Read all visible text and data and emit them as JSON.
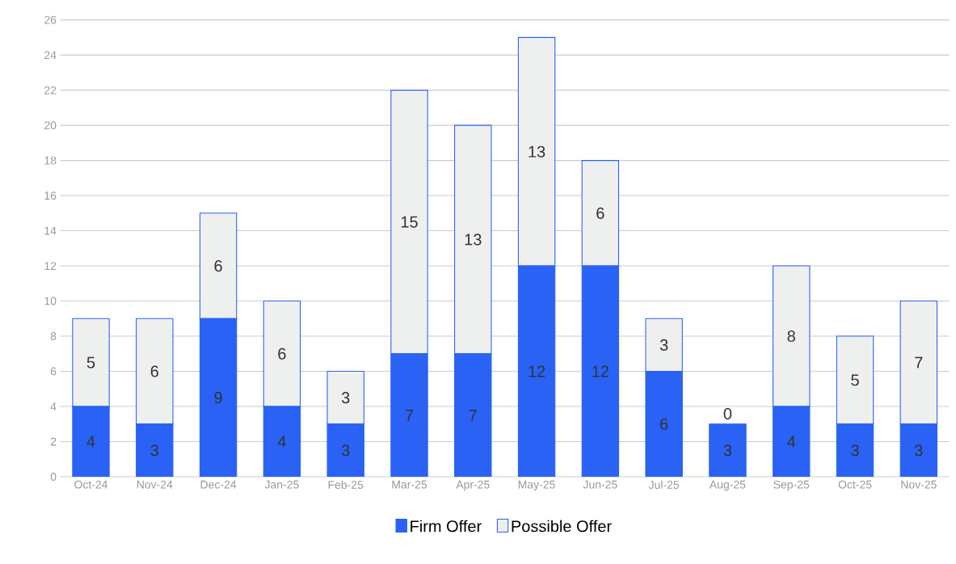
{
  "chart_data": {
    "type": "bar",
    "stacked": true,
    "categories": [
      "Oct-24",
      "Nov-24",
      "Dec-24",
      "Jan-25",
      "Feb-25",
      "Mar-25",
      "Apr-25",
      "May-25",
      "Jun-25",
      "Jul-25",
      "Aug-25",
      "Sep-25",
      "Oct-25",
      "Nov-25"
    ],
    "series": [
      {
        "name": "Firm Offer",
        "color": "#2962f5",
        "values": [
          4,
          3,
          9,
          4,
          3,
          7,
          7,
          12,
          12,
          6,
          3,
          4,
          3,
          3
        ]
      },
      {
        "name": "Possible Offer",
        "color": "#eef0f0",
        "values": [
          5,
          6,
          6,
          6,
          3,
          15,
          13,
          13,
          6,
          3,
          0,
          8,
          5,
          7
        ]
      }
    ],
    "ylim": [
      0,
      26
    ],
    "yticks": [
      0,
      2,
      4,
      6,
      8,
      10,
      12,
      14,
      16,
      18,
      20,
      22,
      24,
      26
    ],
    "grid": "y",
    "legend": "bottom",
    "data_labels": true
  }
}
